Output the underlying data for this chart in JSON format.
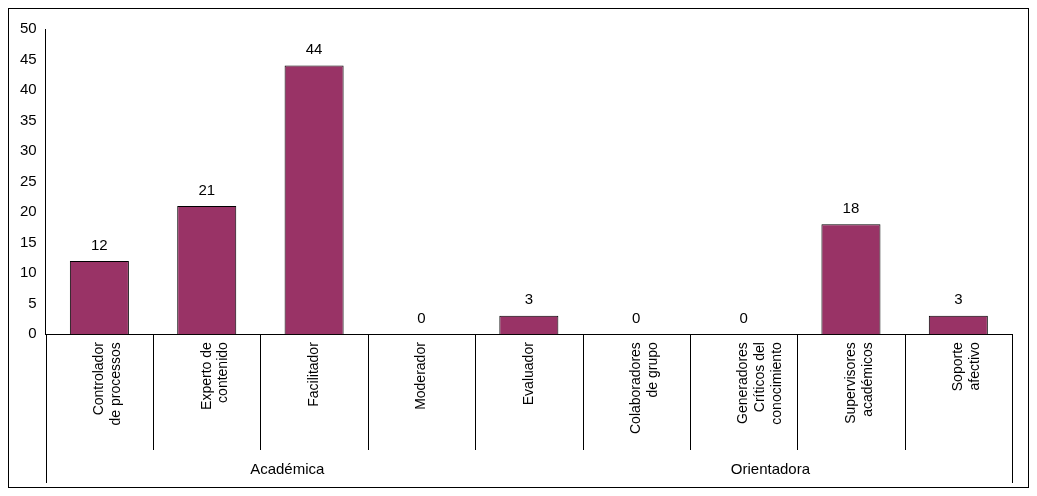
{
  "chart_data": {
    "type": "bar",
    "categories": [
      "Controlador de processos",
      "Experto de contenido",
      "Facilitador",
      "Moderador",
      "Evaluador",
      "Colaboradores de grupo",
      "Generadores Críticos del conocimiento",
      "Supervisores académicos",
      "Soporte afectivo"
    ],
    "values": [
      12,
      21,
      44,
      0,
      3,
      0,
      0,
      18,
      3
    ],
    "color": "#993366",
    "ylim": [
      0,
      50
    ],
    "yticks": [
      0,
      5,
      10,
      15,
      20,
      25,
      30,
      35,
      40,
      45,
      50
    ],
    "data_labels": true,
    "grid": false,
    "legend": false,
    "annotations": [
      "Académica",
      "Orientadora"
    ]
  }
}
